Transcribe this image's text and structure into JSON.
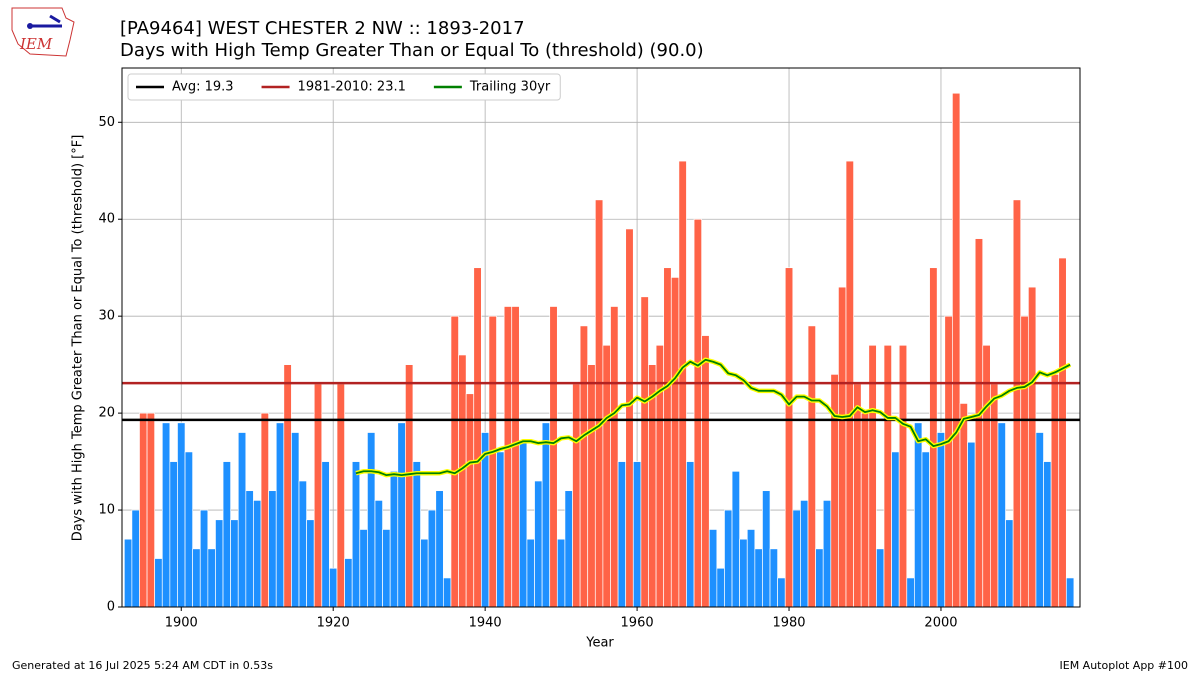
{
  "chart_data": {
    "type": "bar",
    "title": "[PA9464] WEST CHESTER 2 NW :: 1893-2017",
    "subtitle": "Days with High Temp Greater Than or Equal To (threshold) (90.0)",
    "xlabel": "Year",
    "ylabel": "Days with High Temp Greater Than or Equal To (threshold) [°F]",
    "x": [
      1893,
      1894,
      1895,
      1896,
      1897,
      1898,
      1899,
      1900,
      1901,
      1902,
      1903,
      1904,
      1905,
      1906,
      1907,
      1908,
      1909,
      1910,
      1911,
      1912,
      1913,
      1914,
      1915,
      1916,
      1917,
      1918,
      1919,
      1920,
      1921,
      1922,
      1923,
      1924,
      1925,
      1926,
      1927,
      1928,
      1929,
      1930,
      1931,
      1932,
      1933,
      1934,
      1935,
      1936,
      1937,
      1938,
      1939,
      1940,
      1941,
      1942,
      1943,
      1944,
      1945,
      1946,
      1947,
      1948,
      1949,
      1950,
      1951,
      1952,
      1953,
      1954,
      1955,
      1956,
      1957,
      1958,
      1959,
      1960,
      1961,
      1962,
      1963,
      1964,
      1965,
      1966,
      1967,
      1968,
      1969,
      1970,
      1971,
      1972,
      1973,
      1974,
      1975,
      1976,
      1977,
      1978,
      1979,
      1980,
      1981,
      1982,
      1983,
      1984,
      1985,
      1986,
      1987,
      1988,
      1989,
      1990,
      1991,
      1992,
      1993,
      1994,
      1995,
      1996,
      1997,
      1998,
      1999,
      2000,
      2001,
      2002,
      2003,
      2004,
      2005,
      2006,
      2007,
      2008,
      2009,
      2010,
      2011,
      2012,
      2013,
      2014,
      2015,
      2016,
      2017
    ],
    "values": [
      7,
      10,
      20,
      20,
      5,
      19,
      15,
      19,
      16,
      6,
      10,
      6,
      9,
      15,
      9,
      18,
      12,
      11,
      20,
      12,
      19,
      25,
      18,
      13,
      9,
      23,
      15,
      4,
      23,
      5,
      15,
      8,
      18,
      11,
      8,
      14,
      19,
      25,
      15,
      7,
      10,
      12,
      3,
      30,
      26,
      22,
      35,
      18,
      30,
      16,
      31,
      31,
      17,
      7,
      13,
      19,
      31,
      7,
      12,
      23,
      29,
      25,
      42,
      27,
      31,
      15,
      39,
      15,
      32,
      25,
      27,
      35,
      34,
      46,
      15,
      40,
      28,
      8,
      4,
      10,
      14,
      7,
      8,
      6,
      12,
      6,
      3,
      35,
      10,
      11,
      29,
      6,
      11,
      24,
      33,
      46,
      23,
      20,
      27,
      6,
      27,
      16,
      27,
      3,
      19,
      16,
      35,
      18,
      30,
      53,
      21,
      17,
      38,
      27,
      23,
      19,
      9,
      42,
      30,
      33,
      18,
      15,
      24,
      36,
      3
    ],
    "bar_colors": {
      "above": "#ff6347",
      "below": "#1e90ff"
    },
    "hlines": [
      {
        "name": "Avg: 19.3",
        "value": 19.3,
        "color": "#000000"
      },
      {
        "name": "1981-2010: 23.1",
        "value": 23.1,
        "color": "#b22222"
      }
    ],
    "series": [
      {
        "name": "Trailing 30yr",
        "color": "#008000",
        "outline": "#ffff00",
        "values": [
          null,
          null,
          null,
          null,
          null,
          null,
          null,
          null,
          null,
          null,
          null,
          null,
          null,
          null,
          null,
          null,
          null,
          null,
          null,
          null,
          null,
          null,
          null,
          null,
          null,
          null,
          null,
          null,
          null,
          null,
          13.8,
          14.0,
          14.0,
          13.9,
          13.6,
          13.7,
          13.6,
          13.7,
          13.8,
          13.8,
          13.8,
          13.8,
          14.0,
          13.8,
          14.3,
          14.9,
          15.0,
          15.8,
          16.0,
          16.3,
          16.5,
          16.8,
          17.1,
          17.1,
          16.9,
          17.0,
          16.9,
          17.4,
          17.5,
          17.1,
          17.7,
          18.2,
          18.7,
          19.5,
          20.0,
          20.8,
          20.9,
          21.6,
          21.2,
          21.7,
          22.3,
          22.8,
          23.6,
          24.7,
          25.3,
          24.9,
          25.5,
          25.3,
          25.0,
          24.1,
          23.9,
          23.4,
          22.6,
          22.3,
          22.3,
          22.3,
          21.9,
          20.9,
          21.7,
          21.7,
          21.3,
          21.3,
          20.7,
          19.7,
          19.6,
          19.7,
          20.6,
          20.1,
          20.3,
          20.1,
          19.5,
          19.5,
          18.9,
          18.6,
          17.1,
          17.3,
          16.6,
          16.8,
          17.1,
          18.0,
          19.4,
          19.6,
          19.8,
          20.7,
          21.5,
          21.8,
          22.3,
          22.6,
          22.7,
          23.2,
          24.2,
          23.9,
          24.2,
          24.6,
          25.0
        ]
      }
    ],
    "xlim": [
      1892.2,
      2018.3
    ],
    "xticks": [
      1900,
      1920,
      1940,
      1960,
      1980,
      2000
    ],
    "ylim": [
      0,
      55.6
    ],
    "yticks": [
      0,
      10,
      20,
      30,
      40,
      50
    ],
    "grid": true,
    "legend": "upper left",
    "footer_left": "Generated at 16 Jul 2025 5:24 AM CDT in 0.53s",
    "footer_right": "IEM Autoplot App #100"
  }
}
